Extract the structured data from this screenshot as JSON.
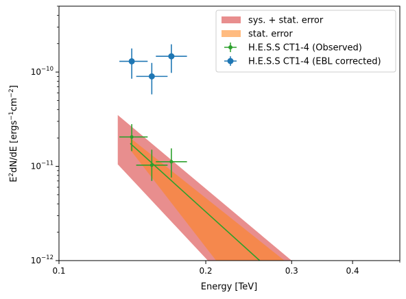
{
  "chart_data": {
    "type": "scatter",
    "xlabel": "Energy [TeV]",
    "ylabel": "E",
    "ylabel_exp": "2",
    "ylabel_rest": "dN/dE [ergs",
    "ylabel_unit_exp1": "−1",
    "ylabel_unit_mid": "cm",
    "ylabel_unit_exp2": "−2",
    "ylabel_close": "]",
    "xscale": "log",
    "yscale": "log",
    "xlim": [
      0.1,
      0.5
    ],
    "ylim": [
      1e-12,
      5e-10
    ],
    "x_ticks": [
      {
        "value": 0.1,
        "label": "0.1"
      },
      {
        "value": 0.2,
        "label": "0.2"
      },
      {
        "value": 0.3,
        "label": "0.3"
      },
      {
        "value": 0.4,
        "label": "0.4"
      }
    ],
    "y_ticks": [
      {
        "value": 1e-12,
        "base": "10",
        "exp": "−12"
      },
      {
        "value": 1e-11,
        "base": "10",
        "exp": "−11"
      },
      {
        "value": 1e-10,
        "base": "10",
        "exp": "−10"
      }
    ],
    "legend": {
      "position": "top-right",
      "entries": [
        {
          "label": "sys. + stat. error",
          "kind": "patch",
          "color": "#e88e8e"
        },
        {
          "label": "stat. error",
          "kind": "patch",
          "color": "#ffbb80"
        },
        {
          "label": "H.E.S.S CT1-4 (Observed)",
          "kind": "errorbar",
          "color": "#2ca02c"
        },
        {
          "label": "H.E.S.S CT1-4 (EBL corrected)",
          "kind": "errorbar",
          "color": "#1f77b4"
        }
      ]
    },
    "bands": [
      {
        "name": "sys. + stat. error",
        "color": "#e88e8e",
        "upper": [
          [
            0.132,
            3.5e-11
          ],
          [
            0.3,
            1e-12
          ]
        ],
        "lower": [
          [
            0.132,
            1.05e-11
          ],
          [
            0.202,
            1e-12
          ]
        ]
      },
      {
        "name": "stat. error",
        "color": "#f5884d",
        "upper": [
          [
            0.14,
            2e-11
          ],
          [
            0.29,
            1e-12
          ]
        ],
        "lower": [
          [
            0.14,
            1.5e-11
          ],
          [
            0.21,
            1e-12
          ]
        ]
      }
    ],
    "fit_line": {
      "color": "#2ca02c",
      "points": [
        [
          0.14,
          1.75e-11
        ],
        [
          0.258,
          1e-12
        ]
      ]
    },
    "series": [
      {
        "name": "H.E.S.S CT1-4 (Observed)",
        "color": "#2ca02c",
        "marker_radius": "small",
        "points": [
          {
            "x": 0.141,
            "y": 2.05e-11,
            "xerr": [
              0.133,
              0.152
            ],
            "yerr": [
              1.45e-11,
              2.8e-11
            ]
          },
          {
            "x": 0.155,
            "y": 1.03e-11,
            "xerr": [
              0.144,
              0.167
            ],
            "yerr": [
              7e-12,
              1.5e-11
            ]
          },
          {
            "x": 0.17,
            "y": 1.12e-11,
            "xerr": [
              0.158,
              0.183
            ],
            "yerr": [
              7.6e-12,
              1.55e-11
            ]
          }
        ]
      },
      {
        "name": "H.E.S.S CT1-4 (EBL corrected)",
        "color": "#1f77b4",
        "marker_radius": "large",
        "points": [
          {
            "x": 0.141,
            "y": 1.3e-10,
            "xerr": [
              0.133,
              0.152
            ],
            "yerr": [
              8.5e-11,
              1.78e-10
            ]
          },
          {
            "x": 0.155,
            "y": 9e-11,
            "xerr": [
              0.144,
              0.167
            ],
            "yerr": [
              5.8e-11,
              1.25e-10
            ]
          },
          {
            "x": 0.17,
            "y": 1.47e-10,
            "xerr": [
              0.158,
              0.183
            ],
            "yerr": [
              9.8e-11,
              1.97e-10
            ]
          }
        ]
      }
    ]
  }
}
